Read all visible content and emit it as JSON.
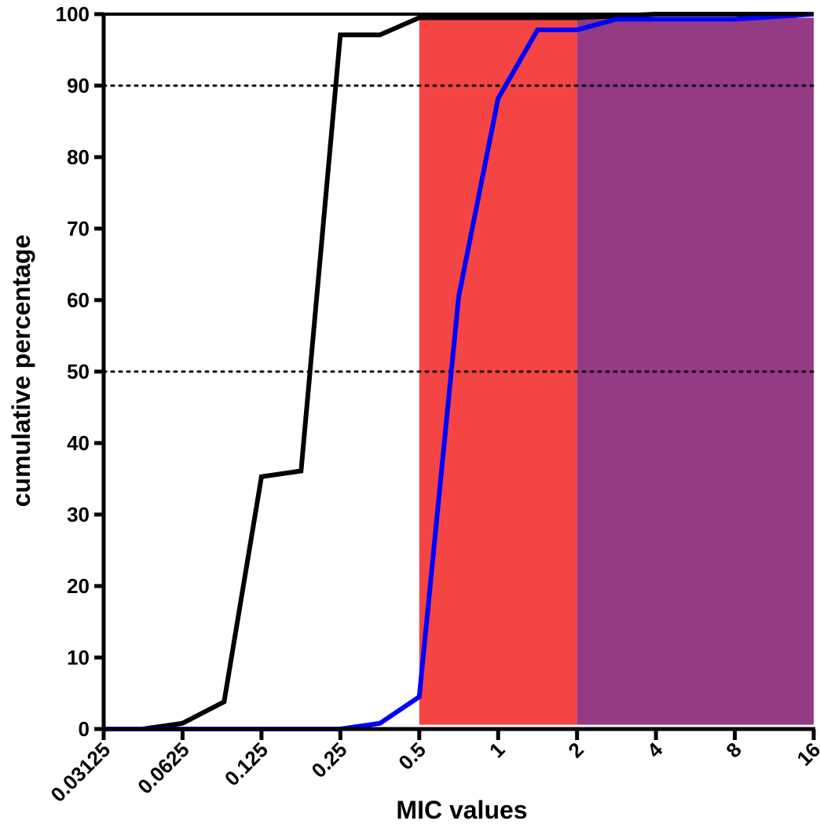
{
  "chart_data": {
    "type": "line",
    "xlabel": "MIC values",
    "ylabel": "cumulative percentage",
    "x_scale": "log2",
    "xlim": [
      0.03125,
      16
    ],
    "ylim": [
      0,
      100
    ],
    "x_ticks": [
      "0.03125",
      "0.0625",
      "0.125",
      "0.25",
      "0.5",
      "1",
      "2",
      "4",
      "8",
      "16"
    ],
    "y_ticks": [
      "0",
      "10",
      "20",
      "30",
      "40",
      "50",
      "60",
      "70",
      "80",
      "90",
      "100"
    ],
    "reference_lines_y": [
      50,
      90
    ],
    "shaded_regions": [
      {
        "x_from": 0.5,
        "x_to": 2,
        "color": "#f44444"
      },
      {
        "x_from": 2,
        "x_to": 16,
        "color": "#953a85"
      }
    ],
    "grid": false,
    "series": [
      {
        "color": "#000000",
        "points": [
          [
            0.044,
            0
          ],
          [
            0.0625,
            0.8
          ],
          [
            0.09,
            3.8
          ],
          [
            0.125,
            35.3
          ],
          [
            0.177,
            36.1
          ],
          [
            0.25,
            97.1
          ],
          [
            0.354,
            97.1
          ],
          [
            0.5,
            99.5
          ],
          [
            1,
            99.5
          ],
          [
            2,
            99.5
          ],
          [
            4,
            100
          ],
          [
            8,
            100
          ],
          [
            16,
            100
          ]
        ]
      },
      {
        "color": "#0000ff",
        "points": [
          [
            0.03125,
            0
          ],
          [
            0.25,
            0
          ],
          [
            0.354,
            0.8
          ],
          [
            0.5,
            4.5
          ],
          [
            0.707,
            60.5
          ],
          [
            1,
            88.2
          ],
          [
            1.414,
            97.8
          ],
          [
            2,
            97.8
          ],
          [
            2.83,
            99.3
          ],
          [
            4,
            99.3
          ],
          [
            8,
            99.3
          ],
          [
            16,
            100
          ]
        ]
      }
    ]
  }
}
